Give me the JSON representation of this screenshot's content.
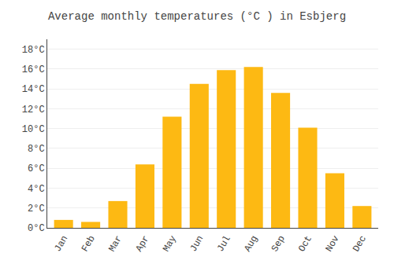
{
  "chart_data": {
    "type": "bar",
    "title": "Average monthly temperatures (°C ) in Esbjerg",
    "categories": [
      "Jan",
      "Feb",
      "Mar",
      "Apr",
      "May",
      "Jun",
      "Jul",
      "Aug",
      "Sep",
      "Oct",
      "Nov",
      "Dec"
    ],
    "values": [
      0.8,
      0.6,
      2.7,
      6.4,
      11.2,
      14.5,
      15.9,
      16.2,
      13.6,
      10.1,
      5.5,
      2.2
    ],
    "color": "#FDB913",
    "ylim": [
      0,
      19.0
    ],
    "yticks": [
      {
        "value": 0,
        "label": "0°C"
      },
      {
        "value": 2,
        "label": "2°C"
      },
      {
        "value": 4,
        "label": "4°C"
      },
      {
        "value": 6,
        "label": "6°C"
      },
      {
        "value": 8,
        "label": "8°C"
      },
      {
        "value": 10,
        "label": "10°C"
      },
      {
        "value": 12,
        "label": "12°C"
      },
      {
        "value": 14,
        "label": "14°C"
      },
      {
        "value": 16,
        "label": "16°C"
      },
      {
        "value": 18,
        "label": "18°C"
      }
    ],
    "grid": true
  }
}
